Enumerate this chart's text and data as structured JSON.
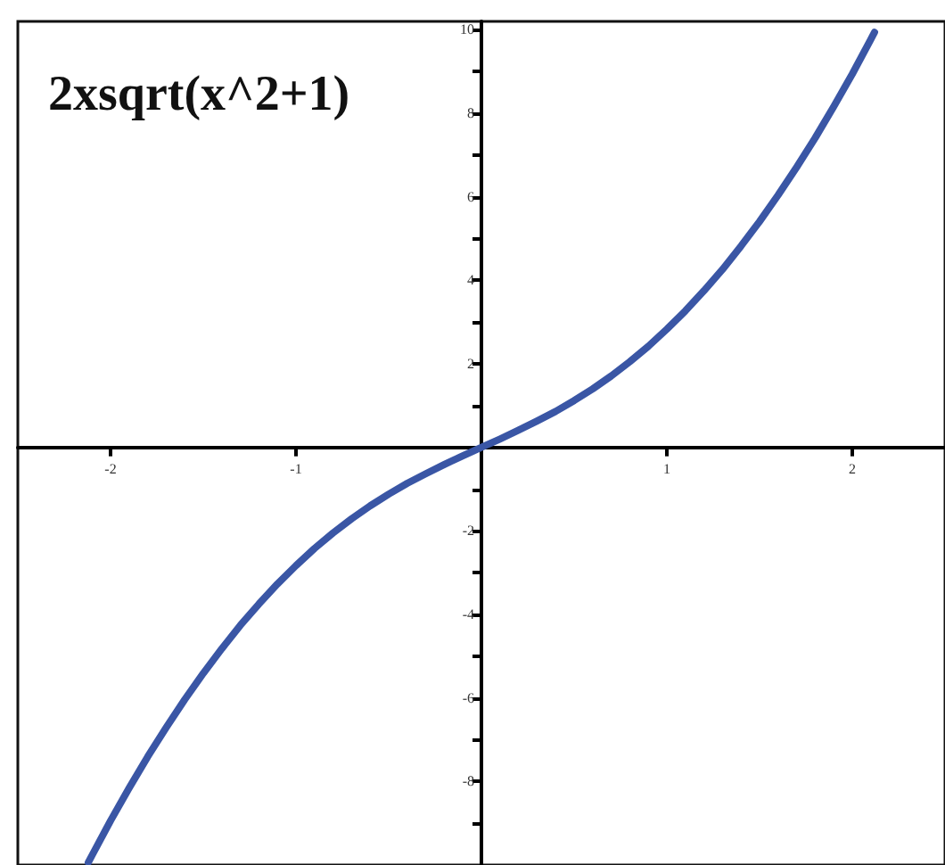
{
  "chart_data": {
    "type": "line",
    "title": "2xsqrt(x^2+1)",
    "x": [
      -2.12,
      -2.1,
      -2.0,
      -1.9,
      -1.8,
      -1.7,
      -1.6,
      -1.5,
      -1.4,
      -1.3,
      -1.2,
      -1.1,
      -1.0,
      -0.9,
      -0.8,
      -0.7,
      -0.6,
      -0.5,
      -0.4,
      -0.3,
      -0.2,
      -0.1,
      0,
      0.1,
      0.2,
      0.3,
      0.4,
      0.5,
      0.6,
      0.7,
      0.8,
      0.9,
      1.0,
      1.1,
      1.2,
      1.3,
      1.4,
      1.5,
      1.6,
      1.7,
      1.8,
      1.9,
      2.0,
      2.1,
      2.12
    ],
    "series": [
      {
        "color": "#3a56a5",
        "values": [
          -9.94,
          -9.77,
          -8.94,
          -8.16,
          -7.41,
          -6.71,
          -6.04,
          -5.41,
          -4.82,
          -4.26,
          -3.75,
          -3.27,
          -2.83,
          -2.42,
          -2.05,
          -1.71,
          -1.4,
          -1.12,
          -0.86,
          -0.63,
          -0.41,
          -0.2,
          0,
          0.2,
          0.41,
          0.63,
          0.86,
          1.12,
          1.4,
          1.71,
          2.05,
          2.42,
          2.83,
          3.27,
          3.75,
          4.26,
          4.82,
          5.41,
          6.04,
          6.71,
          7.41,
          8.16,
          8.94,
          9.77,
          9.94
        ]
      }
    ],
    "xlim": [
      -2.5,
      2.5
    ],
    "xticks": [
      -2,
      -1,
      1,
      2
    ],
    "ylim": [
      -10,
      10.2
    ],
    "yticks": [
      10,
      {
        "value": 9,
        "label": null
      },
      8,
      {
        "value": 7,
        "label": null
      },
      6,
      {
        "value": 5,
        "label": null
      },
      4,
      {
        "value": 3,
        "label": null
      },
      2,
      {
        "value": 1,
        "label": null
      },
      {
        "value": -1,
        "label": null
      },
      -2,
      {
        "value": -3,
        "label": null
      },
      -4,
      {
        "value": -5,
        "label": null
      },
      -6,
      {
        "value": -7,
        "label": null
      },
      -8,
      {
        "value": -9,
        "label": null
      }
    ],
    "grid": false,
    "marker": "none",
    "line_style": "solid"
  }
}
